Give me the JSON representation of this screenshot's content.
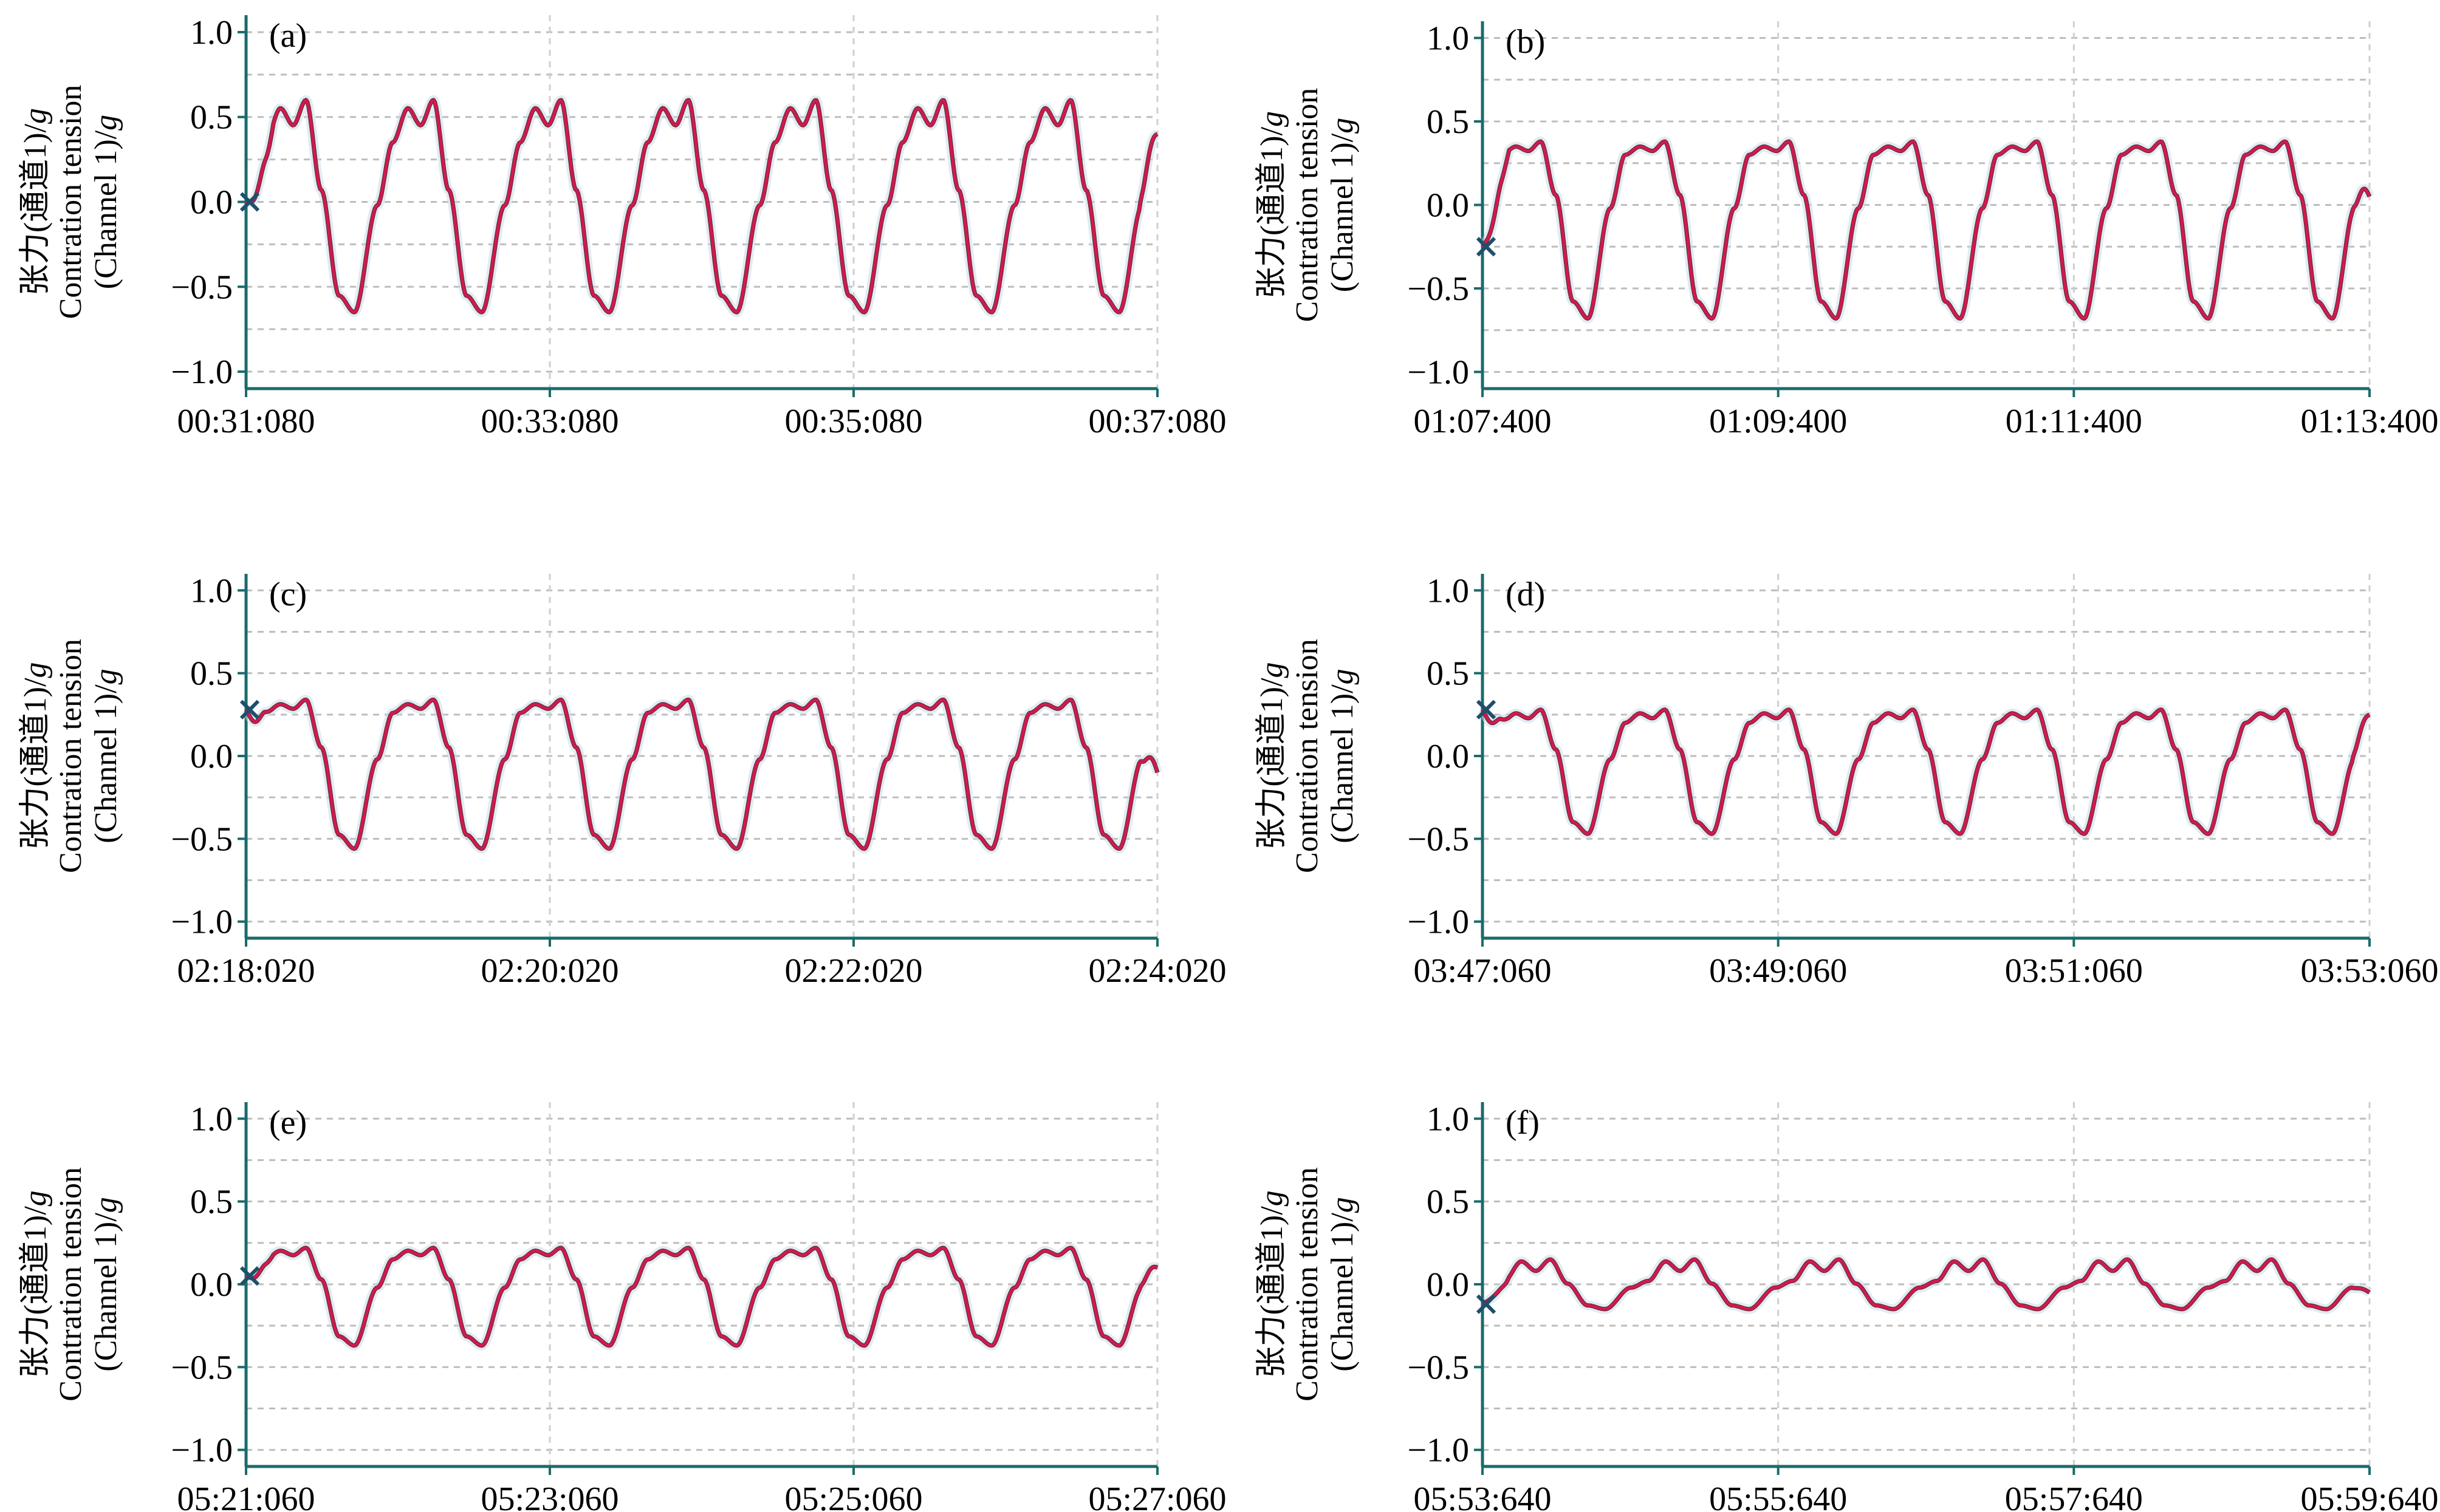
{
  "y_axis_label": {
    "line1_cn_prefix": "张力(通道1)/",
    "line1_unit": "g",
    "line2": "Contration tension",
    "line3_prefix": "(Channel 1)/",
    "line3_unit": "g"
  },
  "colors": {
    "trace": "#d3194b",
    "trace_dark": "#4a2a3a",
    "axis": "#1a6b6b",
    "grid": "#bdbdbd",
    "marker": "#1f4f6a"
  },
  "chart_data": [
    {
      "type": "line",
      "panel": "(a)",
      "ylim": [
        -1.1,
        1.1
      ],
      "yticks": [
        "1.0",
        "0.5",
        "0.0",
        "−0.5",
        "−1.0"
      ],
      "ytick_values": [
        1.0,
        0.5,
        0.0,
        -0.5,
        -1.0
      ],
      "xlim": [
        0,
        6
      ],
      "xticks": [
        "00:31:080",
        "00:33:080",
        "00:35:080",
        "00:37:080"
      ],
      "xtick_values": [
        0,
        2,
        4,
        6
      ],
      "grid": true,
      "cycles": 7,
      "max": 0.6,
      "min": -0.65,
      "notch": 0.35,
      "start_value": 0.0,
      "end_value": 0.4
    },
    {
      "type": "line",
      "panel": "(b)",
      "ylim": [
        -1.1,
        1.1
      ],
      "yticks": [
        "1.0",
        "0.5",
        "0.0",
        "−0.5",
        "−1.0"
      ],
      "ytick_values": [
        1.0,
        0.5,
        0.0,
        -0.5,
        -1.0
      ],
      "xlim": [
        0,
        6
      ],
      "xticks": [
        "01:07:400",
        "01:09:400",
        "01:11:400",
        "01:13:400"
      ],
      "xtick_values": [
        0,
        2,
        4,
        6
      ],
      "grid": true,
      "cycles": 7,
      "max": 0.38,
      "min": -0.68,
      "notch": 0.3,
      "start_value": -0.25,
      "end_value": 0.05
    },
    {
      "type": "line",
      "panel": "(c)",
      "ylim": [
        -1.1,
        1.1
      ],
      "yticks": [
        "1.0",
        "0.5",
        "0.0",
        "−0.5",
        "−1.0"
      ],
      "ytick_values": [
        1.0,
        0.5,
        0.0,
        -0.5,
        -1.0
      ],
      "xlim": [
        0,
        6
      ],
      "xticks": [
        "02:18:020",
        "02:20:020",
        "02:22:020",
        "02:24:020"
      ],
      "xtick_values": [
        0,
        2,
        4,
        6
      ],
      "grid": true,
      "cycles": 7,
      "max": 0.34,
      "min": -0.56,
      "notch": 0.26,
      "start_value": 0.28,
      "end_value": -0.1
    },
    {
      "type": "line",
      "panel": "(d)",
      "ylim": [
        -1.1,
        1.1
      ],
      "yticks": [
        "1.0",
        "0.5",
        "0.0",
        "−0.5",
        "−1.0"
      ],
      "ytick_values": [
        1.0,
        0.5,
        0.0,
        -0.5,
        -1.0
      ],
      "xlim": [
        0,
        6
      ],
      "xticks": [
        "03:47:060",
        "03:49:060",
        "03:51:060",
        "03:53:060"
      ],
      "xtick_values": [
        0,
        2,
        4,
        6
      ],
      "grid": true,
      "cycles": 7,
      "max": 0.28,
      "min": -0.47,
      "notch": 0.2,
      "start_value": 0.28,
      "end_value": 0.25
    },
    {
      "type": "line",
      "panel": "(e)",
      "ylim": [
        -1.1,
        1.1
      ],
      "yticks": [
        "1.0",
        "0.5",
        "0.0",
        "−0.5",
        "−1.0"
      ],
      "ytick_values": [
        1.0,
        0.5,
        0.0,
        -0.5,
        -1.0
      ],
      "xlim": [
        0,
        6
      ],
      "xticks": [
        "05:21:060",
        "05:23:060",
        "05:25:060",
        "05:27:060"
      ],
      "xtick_values": [
        0,
        2,
        4,
        6
      ],
      "grid": true,
      "cycles": 7,
      "max": 0.22,
      "min": -0.37,
      "notch": 0.15,
      "start_value": 0.05,
      "end_value": 0.1
    },
    {
      "type": "line",
      "panel": "(f)",
      "ylim": [
        -1.1,
        1.1
      ],
      "yticks": [
        "1.0",
        "0.5",
        "0.0",
        "−0.5",
        "−1.0"
      ],
      "ytick_values": [
        1.0,
        0.5,
        0.0,
        -0.5,
        -1.0
      ],
      "xlim": [
        0,
        6
      ],
      "xticks": [
        "05:53:640",
        "05:55:640",
        "05:57:640",
        "05:59:640"
      ],
      "xtick_values": [
        0,
        2,
        4,
        6
      ],
      "grid": true,
      "cycles": 6,
      "max": 0.15,
      "min": -0.15,
      "notch": 0.02,
      "start_value": -0.12,
      "end_value": -0.05
    }
  ]
}
